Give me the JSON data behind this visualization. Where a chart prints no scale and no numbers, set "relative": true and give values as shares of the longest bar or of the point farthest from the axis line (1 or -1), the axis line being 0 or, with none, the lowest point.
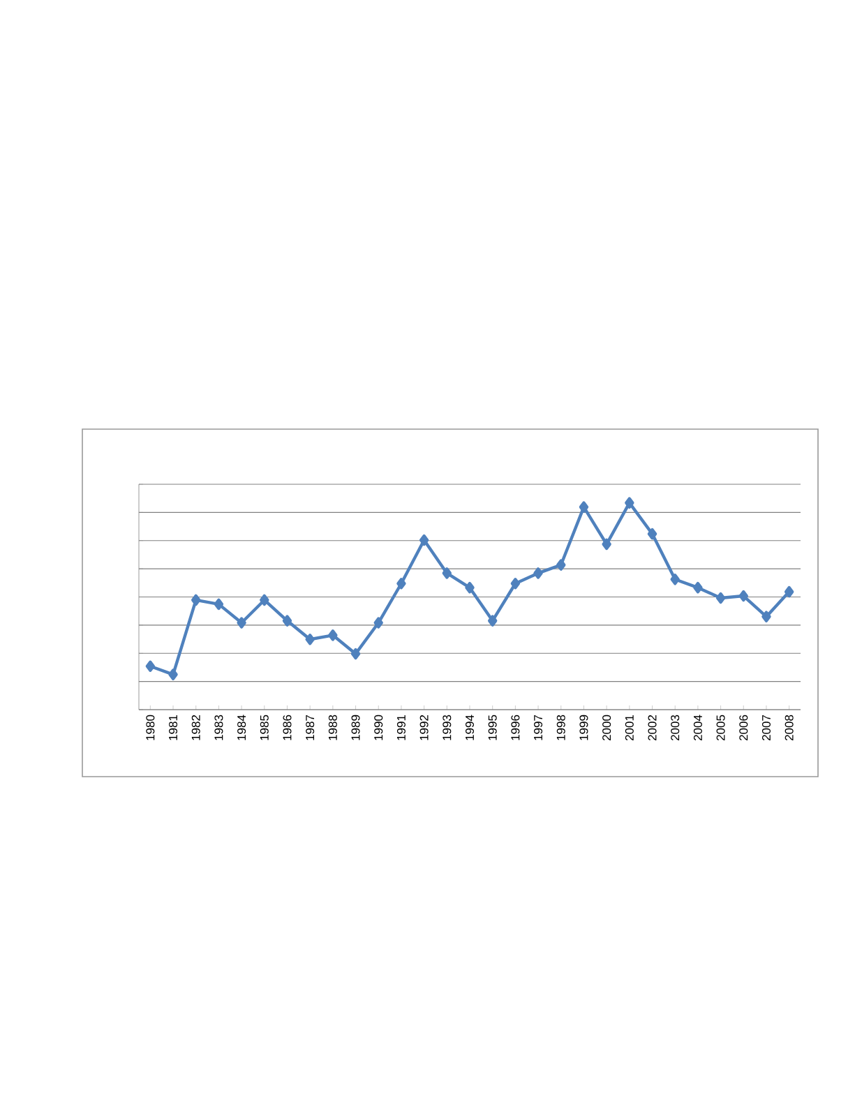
{
  "chart_data": {
    "type": "line",
    "relative": true,
    "grid": "y",
    "marker": "diamond",
    "line_style": "solid",
    "categories": [
      "1980",
      "1981",
      "1982",
      "1983",
      "1984",
      "1985",
      "1986",
      "1987",
      "1988",
      "1989",
      "1990",
      "1991",
      "1992",
      "1993",
      "1994",
      "1995",
      "1996",
      "1997",
      "1998",
      "1999",
      "2000",
      "2001",
      "2002",
      "2003",
      "2004",
      "2005",
      "2006",
      "2007",
      "2008"
    ],
    "series": [
      {
        "color": "#4f81bd",
        "values": [
          0.21,
          0.17,
          0.53,
          0.51,
          0.42,
          0.53,
          0.43,
          0.34,
          0.36,
          0.27,
          0.42,
          0.61,
          0.82,
          0.66,
          0.59,
          0.43,
          0.61,
          0.66,
          0.7,
          0.98,
          0.8,
          1,
          0.85,
          0.63,
          0.59,
          0.54,
          0.55,
          0.45,
          0.57
        ]
      }
    ]
  }
}
